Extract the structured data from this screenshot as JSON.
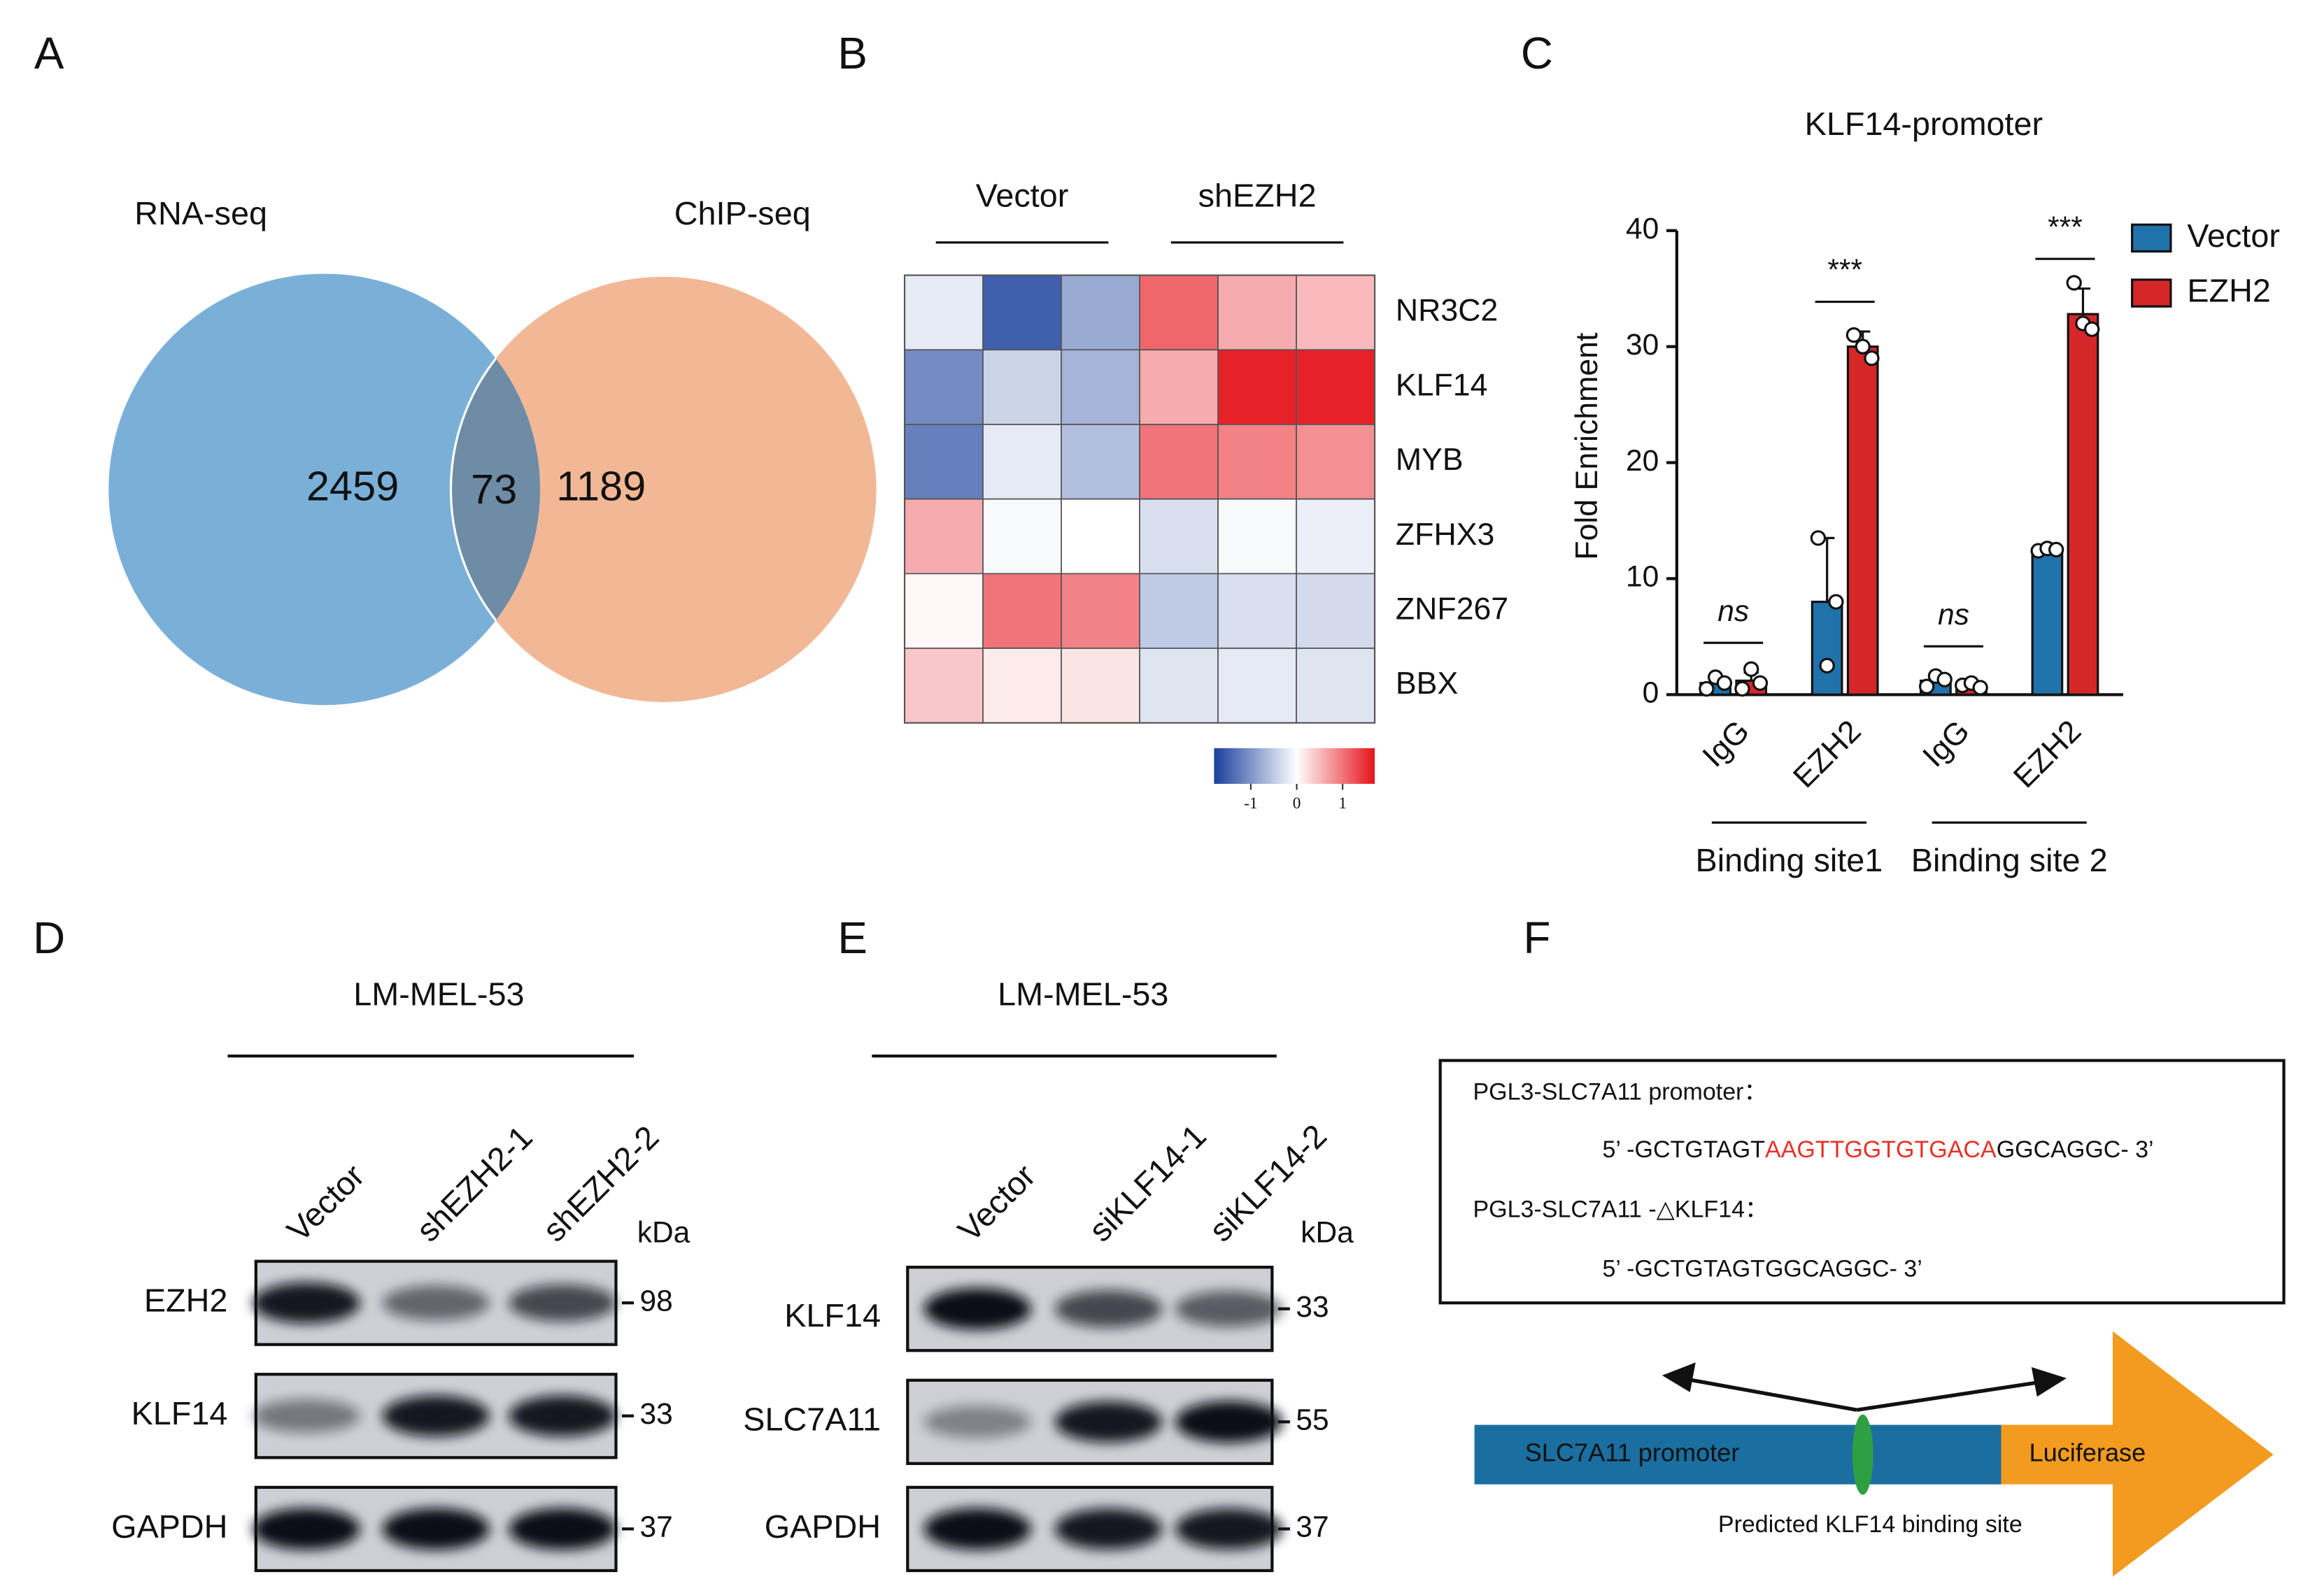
{
  "panel_labels": [
    "A",
    "B",
    "C",
    "D",
    "E",
    "F"
  ],
  "chart_data": [
    {
      "type": "venn",
      "sets": [
        {
          "name": "RNA-seq",
          "value": 2459,
          "color": "#7ab0d8"
        },
        {
          "name": "ChIP-seq",
          "value": 1189,
          "color": "#f2b896"
        }
      ],
      "intersection": 73,
      "overlap_color": "#6f8ca6"
    },
    {
      "type": "heatmap",
      "col_groups": [
        "Vector",
        "shEZH2"
      ],
      "rows": [
        "NR3C2",
        "KLF14",
        "MYB",
        "ZFHX3",
        "ZNF267",
        "BBX"
      ],
      "row_colors": [
        "#111111",
        "#d62728",
        "#111111",
        "#111111",
        "#111111",
        "#111111"
      ],
      "values": [
        [
          -0.2,
          -1.5,
          -0.8,
          1.1,
          0.6,
          0.5
        ],
        [
          -1.1,
          -0.4,
          -0.7,
          0.6,
          1.6,
          1.6
        ],
        [
          -1.2,
          -0.2,
          -0.6,
          1.0,
          0.9,
          0.8
        ],
        [
          0.6,
          -0.05,
          0.0,
          -0.3,
          -0.05,
          -0.15
        ],
        [
          0.05,
          1.0,
          0.9,
          -0.5,
          -0.3,
          -0.35
        ],
        [
          0.4,
          0.15,
          0.2,
          -0.25,
          -0.2,
          -0.25
        ]
      ],
      "colormap": [
        "#1a3f9c",
        "#ffffff",
        "#e6131b"
      ],
      "clim": [
        -1.8,
        1.7
      ],
      "cbar_ticks": [
        -1,
        0,
        1
      ]
    },
    {
      "type": "bar",
      "title": "KLF14-promoter",
      "ylabel": "Fold Enrichment",
      "categories": [
        "IgG",
        "EZH2",
        "IgG",
        "EZH2"
      ],
      "groups": [
        "Binding site1",
        "Binding site 2"
      ],
      "significance": [
        "ns",
        "***",
        "ns",
        "***"
      ],
      "series": [
        {
          "name": "Vector",
          "color": "#1f72aa",
          "values": [
            1.0,
            8.0,
            1.2,
            12.5
          ],
          "errors": [
            0.5,
            5.5,
            0.4,
            0.3
          ],
          "points": [
            [
              0.5,
              1.5,
              1.0
            ],
            [
              13.5,
              2.5,
              8.0
            ],
            [
              0.7,
              1.6,
              1.3
            ],
            [
              12.4,
              12.6,
              12.5
            ]
          ]
        },
        {
          "name": "EZH2",
          "color": "#d62728",
          "values": [
            1.2,
            30.0,
            0.8,
            32.8
          ],
          "errors": [
            0.7,
            1.3,
            0.3,
            2.2
          ],
          "points": [
            [
              0.5,
              2.2,
              1.0
            ],
            [
              31.0,
              30.0,
              29.0
            ],
            [
              0.8,
              1.0,
              0.6
            ],
            [
              35.5,
              32.0,
              31.5
            ]
          ]
        }
      ],
      "ylim": [
        0,
        40
      ],
      "yticks": [
        0,
        10,
        20,
        30,
        40
      ],
      "legend": "upper right"
    }
  ],
  "western_blots": [
    {
      "cell_line": "LM-MEL-53",
      "lanes": [
        "Vector",
        "shEZH2-1",
        "shEZH2-2"
      ],
      "unit": "kDa",
      "rows": [
        {
          "protein": "EZH2",
          "marker": 98,
          "intensity": [
            0.95,
            0.55,
            0.7
          ]
        },
        {
          "protein": "KLF14",
          "marker": 33,
          "intensity": [
            0.45,
            0.95,
            0.95
          ]
        },
        {
          "protein": "GAPDH",
          "marker": 37,
          "intensity": [
            1.0,
            1.0,
            1.0
          ]
        }
      ]
    },
    {
      "cell_line": "LM-MEL-53",
      "lanes": [
        "Vector",
        "siKLF14-1",
        "siKLF14-2"
      ],
      "unit": "kDa",
      "rows": [
        {
          "protein": "KLF14",
          "marker": 33,
          "intensity": [
            1.0,
            0.7,
            0.6
          ]
        },
        {
          "protein": "SLC7A11",
          "marker": 55,
          "intensity": [
            0.4,
            0.95,
            1.0
          ]
        },
        {
          "protein": "GAPDH",
          "marker": 37,
          "intensity": [
            1.0,
            0.95,
            0.95
          ]
        }
      ]
    }
  ],
  "constructs": [
    {
      "name": "PGL3-SLC7A11 promoter：",
      "sequence": [
        "5’ -GCTGTAGT",
        "AAGTTGGTGTGACA",
        "GGCAGGC- 3’"
      ]
    },
    {
      "name": "PGL3-SLC7A11 -△KLF14：",
      "sequence": [
        "5’ -GCTGTAGTGGCAGGC- 3’"
      ]
    }
  ],
  "site_color": "#e8312a",
  "diagram": {
    "promoter": "SLC7A11 promoter",
    "reporter": "Luciferase",
    "site": "Predicted KLF14 binding site"
  }
}
